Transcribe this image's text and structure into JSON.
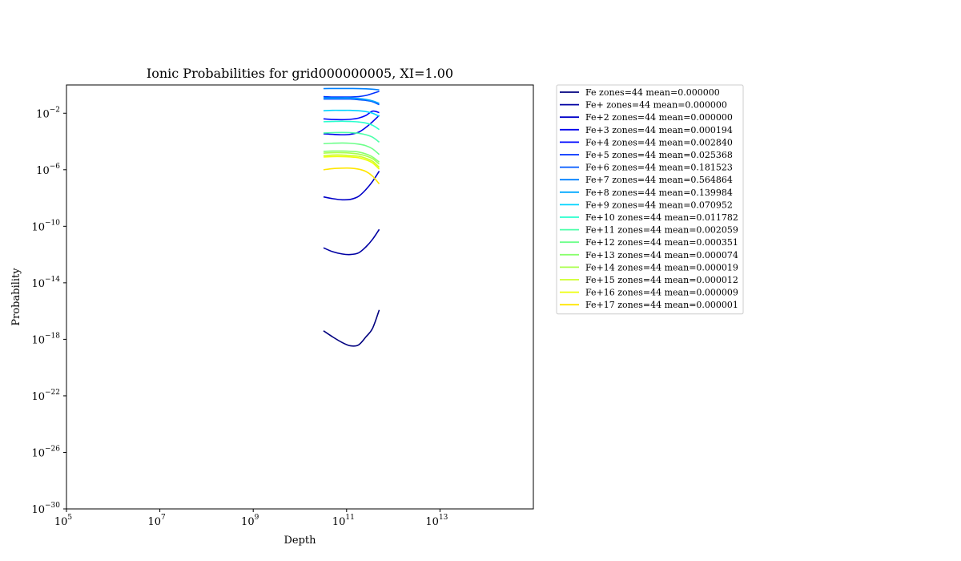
{
  "chart_data": {
    "type": "line",
    "title": "Ionic Probabilities for grid000000005, XI=1.00",
    "xlabel": "Depth",
    "ylabel": "Probability",
    "xscale": "log",
    "yscale": "log",
    "xlim": [
      100000,
      1000000000000000
    ],
    "ylim": [
      1e-30,
      1
    ],
    "x_ticks": [
      {
        "base": "10",
        "exp": "5"
      },
      {
        "base": "10",
        "exp": "7"
      },
      {
        "base": "10",
        "exp": "9"
      },
      {
        "base": "10",
        "exp": "11"
      },
      {
        "base": "10",
        "exp": "13"
      }
    ],
    "y_ticks": [
      {
        "base": "10",
        "exp": "−2"
      },
      {
        "base": "10",
        "exp": "−6"
      },
      {
        "base": "10",
        "exp": "−10"
      },
      {
        "base": "10",
        "exp": "−14"
      },
      {
        "base": "10",
        "exp": "−18"
      },
      {
        "base": "10",
        "exp": "−22"
      },
      {
        "base": "10",
        "exp": "−26"
      },
      {
        "base": "10",
        "exp": "−30"
      }
    ],
    "grid": false,
    "legend_position": "outside-right",
    "depth_points": [
      32000000000.0,
      50000000000.0,
      80000000000.0,
      120000000000.0,
      180000000000.0,
      260000000000.0,
      360000000000.0,
      500000000000.0
    ],
    "series": [
      {
        "name": "Fe zones=44 mean=0.000000",
        "color": "#00007f",
        "values": [
          4e-18,
          1.5e-18,
          6e-19,
          3.5e-19,
          4e-19,
          1.5e-18,
          6e-18,
          1.2e-16
        ]
      },
      {
        "name": "Fe+ zones=44 mean=0.000000",
        "color": "#0000a3",
        "values": [
          3e-12,
          1.6e-12,
          1.1e-12,
          1e-12,
          1.3e-12,
          3.5e-12,
          1.2e-11,
          6e-11
        ]
      },
      {
        "name": "Fe+2 zones=44 mean=0.000000",
        "color": "#0000c8",
        "values": [
          1.2e-08,
          9e-09,
          7.5e-09,
          8e-09,
          1.3e-08,
          4e-08,
          1.5e-07,
          8e-07
        ]
      },
      {
        "name": "Fe+3 zones=44 mean=0.000194",
        "color": "#0000ed",
        "values": [
          0.00035,
          0.00032,
          0.0003,
          0.00032,
          0.00045,
          0.001,
          0.0025,
          0.007
        ]
      },
      {
        "name": "Fe+4 zones=44 mean=0.002840",
        "color": "#0008ff",
        "values": [
          0.004,
          0.0036,
          0.0035,
          0.0037,
          0.0045,
          0.007,
          0.014,
          0.011
        ]
      },
      {
        "name": "Fe+5 zones=44 mean=0.025368",
        "color": "#0030ff",
        "values": [
          0.15,
          0.14,
          0.14,
          0.14,
          0.15,
          0.18,
          0.25,
          0.35
        ]
      },
      {
        "name": "Fe+6 zones=44 mean=0.181523",
        "color": "#0058ff",
        "values": [
          0.1,
          0.1,
          0.1,
          0.1,
          0.09,
          0.08,
          0.065,
          0.04
        ]
      },
      {
        "name": "Fe+7 zones=44 mean=0.564864",
        "color": "#0080ff",
        "values": [
          0.55,
          0.56,
          0.56,
          0.56,
          0.55,
          0.53,
          0.5,
          0.45
        ]
      },
      {
        "name": "Fe+8 zones=44 mean=0.139984",
        "color": "#00a8ff",
        "values": [
          0.12,
          0.12,
          0.12,
          0.12,
          0.11,
          0.095,
          0.075,
          0.05
        ]
      },
      {
        "name": "Fe+9 zones=44 mean=0.070952",
        "color": "#00d4ff",
        "values": [
          0.015,
          0.016,
          0.016,
          0.016,
          0.015,
          0.013,
          0.01,
          0.006
        ]
      },
      {
        "name": "Fe+10 zones=44 mean=0.011782",
        "color": "#29ffce",
        "values": [
          0.0025,
          0.0026,
          0.0027,
          0.0026,
          0.0024,
          0.002,
          0.0014,
          0.0007
        ]
      },
      {
        "name": "Fe+11 zones=44 mean=0.002059",
        "color": "#4dffaa",
        "values": [
          0.0004,
          0.00042,
          0.00043,
          0.00042,
          0.00038,
          0.0003,
          0.0002,
          9e-05
        ]
      },
      {
        "name": "Fe+12 zones=44 mean=0.000351",
        "color": "#6dff8a",
        "values": [
          7e-05,
          7.5e-05,
          7.8e-05,
          7.5e-05,
          6.5e-05,
          5e-05,
          3e-05,
          1.2e-05
        ]
      },
      {
        "name": "Fe+13 zones=44 mean=0.000074",
        "color": "#8aff6d",
        "values": [
          2e-05,
          2.1e-05,
          2.1e-05,
          2e-05,
          1.8e-05,
          1.3e-05,
          8e-06,
          3.5e-06
        ]
      },
      {
        "name": "Fe+14 zones=44 mean=0.000019",
        "color": "#aaff4d",
        "values": [
          1.5e-05,
          1.6e-05,
          1.6e-05,
          1.5e-05,
          1.3e-05,
          9.5e-06,
          6e-06,
          2.5e-06
        ]
      },
      {
        "name": "Fe+15 zones=44 mean=0.000012",
        "color": "#ceff29",
        "values": [
          1e-05,
          1.1e-05,
          1.1e-05,
          1e-05,
          9e-06,
          6.5e-06,
          4e-06,
          1.5e-06
        ]
      },
      {
        "name": "Fe+16 zones=44 mean=0.000009",
        "color": "#eeff08",
        "values": [
          8e-06,
          8.5e-06,
          8.5e-06,
          8e-06,
          7e-06,
          5e-06,
          3e-06,
          1.1e-06
        ]
      },
      {
        "name": "Fe+17 zones=44 mean=0.000001",
        "color": "#ffe600",
        "values": [
          1e-06,
          1.2e-06,
          1.3e-06,
          1.3e-06,
          1.1e-06,
          7.5e-07,
          3.5e-07,
          1e-07
        ]
      }
    ]
  }
}
